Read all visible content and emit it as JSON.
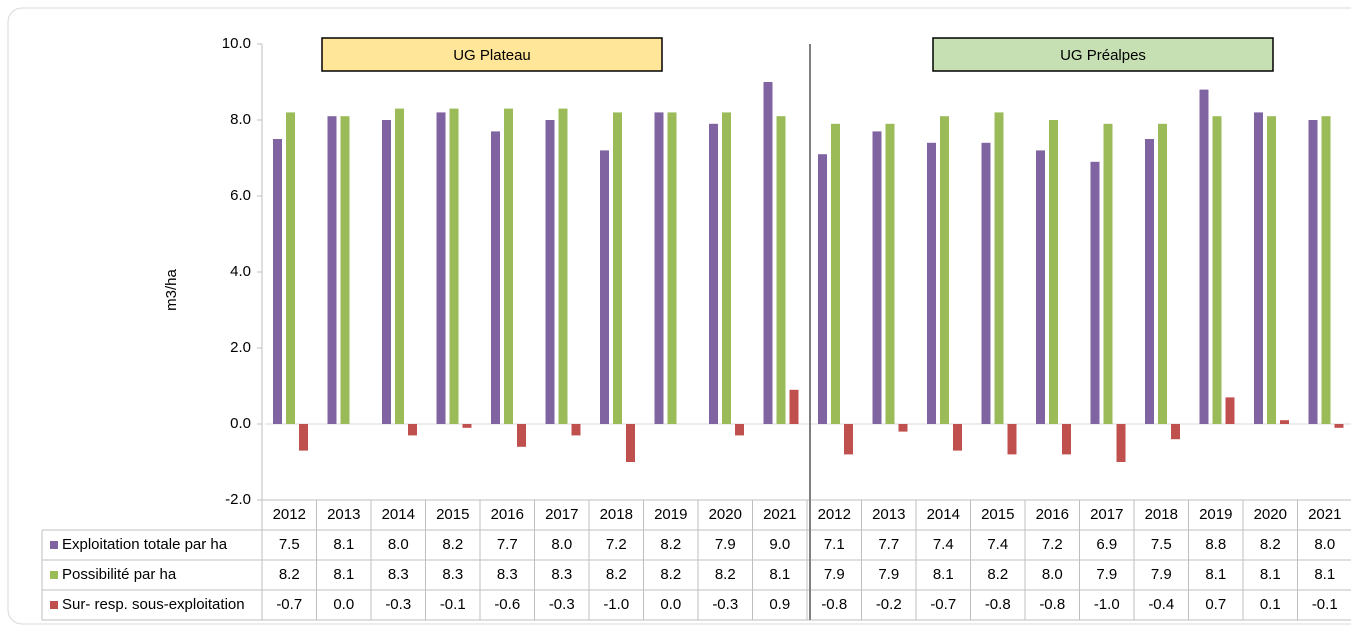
{
  "chart_data": {
    "type": "bar",
    "ylabel": "m3/ha",
    "annotations": [
      "UG Plateau",
      "UG Préalpes"
    ],
    "categories": [
      "2012",
      "2013",
      "2014",
      "2015",
      "2016",
      "2017",
      "2018",
      "2019",
      "2020",
      "2021",
      "2012",
      "2013",
      "2014",
      "2015",
      "2016",
      "2017",
      "2018",
      "2019",
      "2020",
      "2021"
    ],
    "series": [
      {
        "name": "Exploitation totale par ha",
        "color": "#8064a2",
        "values": [
          7.5,
          8.1,
          8,
          8.2,
          7.7,
          8,
          7.2,
          8.2,
          7.9,
          9,
          7.1,
          7.7,
          7.4,
          7.4,
          7.2,
          6.9,
          7.5,
          8.8,
          8.2,
          8
        ],
        "value_labels": [
          "7.5",
          "8.1",
          "8.0",
          "8.2",
          "7.7",
          "8.0",
          "7.2",
          "8.2",
          "7.9",
          "9.0",
          "7.1",
          "7.7",
          "7.4",
          "7.4",
          "7.2",
          "6.9",
          "7.5",
          "8.8",
          "8.2",
          "8.0"
        ]
      },
      {
        "name": "Possibilité par ha",
        "color": "#9bbb59",
        "values": [
          8.2,
          8.1,
          8.3,
          8.3,
          8.3,
          8.3,
          8.2,
          8.2,
          8.2,
          8.1,
          7.9,
          7.9,
          8.1,
          8.2,
          8,
          7.9,
          7.9,
          8.1,
          8.1,
          8.1
        ],
        "value_labels": [
          "8.2",
          "8.1",
          "8.3",
          "8.3",
          "8.3",
          "8.3",
          "8.2",
          "8.2",
          "8.2",
          "8.1",
          "7.9",
          "7.9",
          "8.1",
          "8.2",
          "8.0",
          "7.9",
          "7.9",
          "8.1",
          "8.1",
          "8.1"
        ]
      },
      {
        "name": "Sur- resp. sous-exploitation",
        "color": "#c0504d",
        "values": [
          -0.7,
          0,
          -0.3,
          -0.1,
          -0.6,
          -0.3,
          -1,
          0,
          -0.3,
          0.9,
          -0.8,
          -0.2,
          -0.7,
          -0.8,
          -0.8,
          -1,
          -0.4,
          0.7,
          0.1,
          -0.1
        ],
        "value_labels": [
          "-0.7",
          "0.0",
          "-0.3",
          "-0.1",
          "-0.6",
          "-0.3",
          "-1.0",
          "0.0",
          "-0.3",
          "0.9",
          "-0.8",
          "-0.2",
          "-0.7",
          "-0.8",
          "-0.8",
          "-1.0",
          "-0.4",
          "0.7",
          "0.1",
          "-0.1"
        ]
      }
    ],
    "ylim": [
      -2,
      10
    ],
    "yticks": [
      {
        "value": -2,
        "label": "-2.0"
      },
      {
        "value": 0,
        "label": "0.0"
      },
      {
        "value": 2,
        "label": "2.0"
      },
      {
        "value": 4,
        "label": "4.0"
      },
      {
        "value": 6,
        "label": "6.0"
      },
      {
        "value": 8,
        "label": "8.0"
      },
      {
        "value": 10,
        "label": "10.0"
      }
    ],
    "grid": false
  }
}
